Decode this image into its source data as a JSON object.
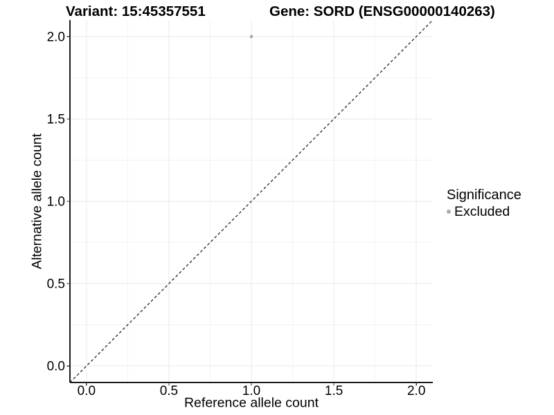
{
  "chart_data": {
    "type": "scatter",
    "title_left": "Variant: 15:45357551",
    "title_right": "Gene: SORD (ENSG00000140263)",
    "xlabel": "Reference allele count",
    "ylabel": "Alternative allele count",
    "xlim": [
      -0.1,
      2.1
    ],
    "ylim": [
      -0.1,
      2.1
    ],
    "x_ticks": [
      0.0,
      0.5,
      1.0,
      1.5,
      2.0
    ],
    "x_tick_labels": [
      "0.0",
      "0.5",
      "1.0",
      "1.5",
      "2.0"
    ],
    "y_ticks": [
      0.0,
      0.5,
      1.0,
      1.5,
      2.0
    ],
    "y_tick_labels": [
      "0.0",
      "0.5",
      "1.0",
      "1.5",
      "2.0"
    ],
    "minor_ticks_x": [
      0.25,
      0.75,
      1.25,
      1.75
    ],
    "minor_ticks_y": [
      0.25,
      0.75,
      1.25,
      1.75
    ],
    "grid": {
      "major_color": "#e9e9e9",
      "minor_color": "#f3f3f3"
    },
    "points": [
      {
        "x": 1.0,
        "y": 2.0,
        "series": "Excluded",
        "color": "#aaaaaa"
      }
    ],
    "reference_line": {
      "slope": 1,
      "intercept": 0,
      "style": "dashed",
      "color": "#111111"
    },
    "legend": {
      "title": "Significance",
      "position": "right",
      "entries": [
        {
          "label": "Excluded",
          "color": "#aaaaaa",
          "marker": "circle"
        }
      ]
    },
    "colors": {
      "background": "#ffffff",
      "axis_line": "#1a1a1a",
      "tick_mark": "#333333",
      "text": "#000000"
    }
  }
}
